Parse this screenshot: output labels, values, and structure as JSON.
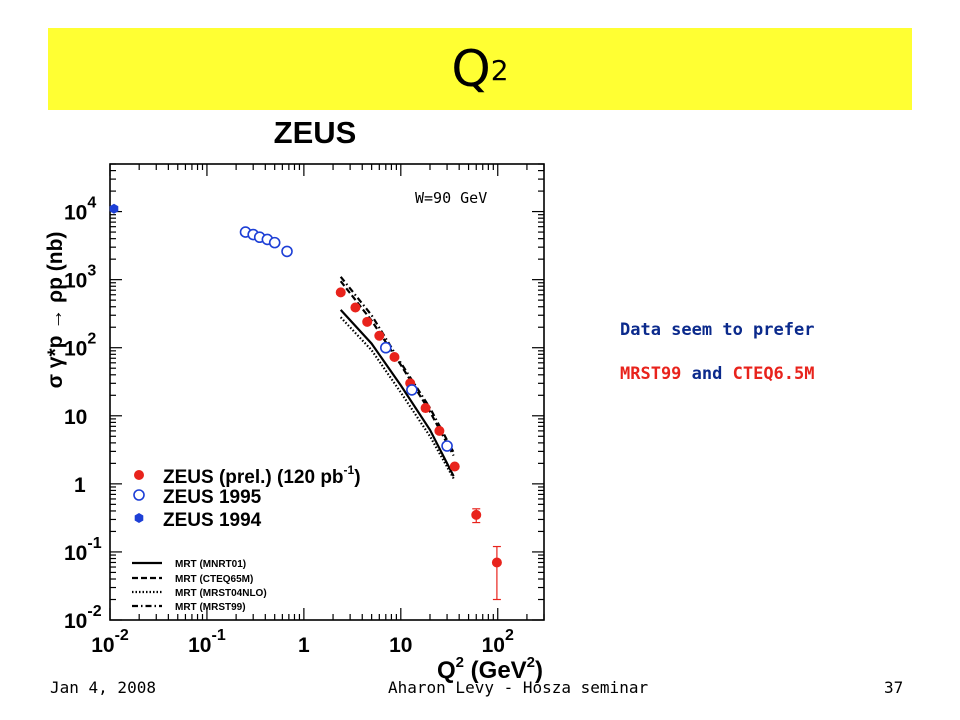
{
  "slide": {
    "title": "Q",
    "title_sup": "2",
    "note_line1": "Data seem to prefer",
    "note_mrst": "MRST99",
    "note_and": " and ",
    "note_cteq": "CTEQ6.5M",
    "footer_left": "Jan 4, 2008",
    "footer_center": "Aharon Levy - Hosza seminar",
    "footer_right": "37"
  },
  "colors": {
    "title_bar": "#ffff33",
    "note_text": "#0b2a8c",
    "highlight": "#e8231c",
    "zeus_prel": "#e8231c",
    "zeus_1995": "#1d3fd6",
    "zeus_1994": "#1d3fd6"
  },
  "chart_data": {
    "type": "scatter",
    "title": "ZEUS",
    "annotation": "W=90 GeV",
    "xlabel": "Q",
    "xlabel_sup": "2",
    "xlabel_unit_pre": "(GeV",
    "xlabel_unit_sup": "2",
    "xlabel_unit_post": ")",
    "ylabel": "σ γ*p → ρp (nb)",
    "xscale": "log",
    "yscale": "log",
    "xlim": [
      0.01,
      300
    ],
    "ylim": [
      0.01,
      50000
    ],
    "x_ticks": [
      {
        "value": 0.01,
        "base": "10",
        "exp": "-2"
      },
      {
        "value": 0.1,
        "base": "10",
        "exp": "-1"
      },
      {
        "value": 1,
        "base": "1",
        "exp": ""
      },
      {
        "value": 10,
        "base": "10",
        "exp": ""
      },
      {
        "value": 100,
        "base": "10",
        "exp": "2"
      }
    ],
    "y_ticks": [
      {
        "value": 10000,
        "base": "10",
        "exp": "4"
      },
      {
        "value": 1000,
        "base": "10",
        "exp": "3"
      },
      {
        "value": 100,
        "base": "10",
        "exp": "2"
      },
      {
        "value": 10,
        "base": "10",
        "exp": ""
      },
      {
        "value": 1,
        "base": "1",
        "exp": ""
      },
      {
        "value": 0.1,
        "base": "10",
        "exp": "-1"
      },
      {
        "value": 0.01,
        "base": "10",
        "exp": "-2"
      }
    ],
    "legend_position": "lower-left",
    "series": [
      {
        "name": "ZEUS (prel.) (120 pb",
        "name_sup": "-1",
        "name_post": ")",
        "marker": "filled-circle",
        "color": "#e8231c",
        "points": [
          {
            "x": 2.4,
            "y": 650,
            "err": 0
          },
          {
            "x": 3.4,
            "y": 390,
            "err": 0
          },
          {
            "x": 4.5,
            "y": 240,
            "err": 0
          },
          {
            "x": 6.0,
            "y": 150,
            "err": 0
          },
          {
            "x": 8.6,
            "y": 73,
            "err": 0
          },
          {
            "x": 12.5,
            "y": 30,
            "err": 0
          },
          {
            "x": 18.0,
            "y": 13,
            "err": 0
          },
          {
            "x": 25.0,
            "y": 6,
            "err": 0
          },
          {
            "x": 36.0,
            "y": 1.8,
            "err": 0
          },
          {
            "x": 60.0,
            "y": 0.35,
            "err": 0.08
          },
          {
            "x": 98.0,
            "y": 0.07,
            "err": 0.05
          }
        ]
      },
      {
        "name": "ZEUS 1995",
        "marker": "open-circle",
        "color": "#1d3fd6",
        "points": [
          {
            "x": 0.25,
            "y": 5000
          },
          {
            "x": 0.3,
            "y": 4600
          },
          {
            "x": 0.35,
            "y": 4200
          },
          {
            "x": 0.42,
            "y": 3900
          },
          {
            "x": 0.5,
            "y": 3500
          },
          {
            "x": 0.67,
            "y": 2600
          },
          {
            "x": 7.0,
            "y": 100
          },
          {
            "x": 13.0,
            "y": 24
          },
          {
            "x": 30.0,
            "y": 3.6
          }
        ]
      },
      {
        "name": "ZEUS 1994",
        "marker": "filled-hexagon",
        "color": "#1d3fd6",
        "points": [
          {
            "x": 0.011,
            "y": 11000
          }
        ]
      }
    ],
    "curves": [
      {
        "name": "MRT (MNRT01)",
        "style": "solid",
        "points": [
          [
            2.4,
            360
          ],
          [
            5,
            115
          ],
          [
            10,
            28
          ],
          [
            20,
            6.2
          ],
          [
            35,
            1.3
          ]
        ]
      },
      {
        "name": "MRT (CTEQ65M)",
        "style": "dashed",
        "points": [
          [
            2.4,
            950
          ],
          [
            5,
            250
          ],
          [
            10,
            56
          ],
          [
            20,
            11.5
          ],
          [
            35,
            2.6
          ]
        ]
      },
      {
        "name": "MRT (MRST04NLO)",
        "style": "dotted",
        "points": [
          [
            2.4,
            280
          ],
          [
            5,
            92
          ],
          [
            10,
            22
          ],
          [
            20,
            5
          ],
          [
            35,
            1.2
          ]
        ]
      },
      {
        "name": "MRT (MRST99)",
        "style": "dashdot",
        "points": [
          [
            2.4,
            1100
          ],
          [
            5,
            300
          ],
          [
            10,
            60
          ],
          [
            20,
            13
          ],
          [
            35,
            2.9
          ]
        ]
      }
    ]
  }
}
